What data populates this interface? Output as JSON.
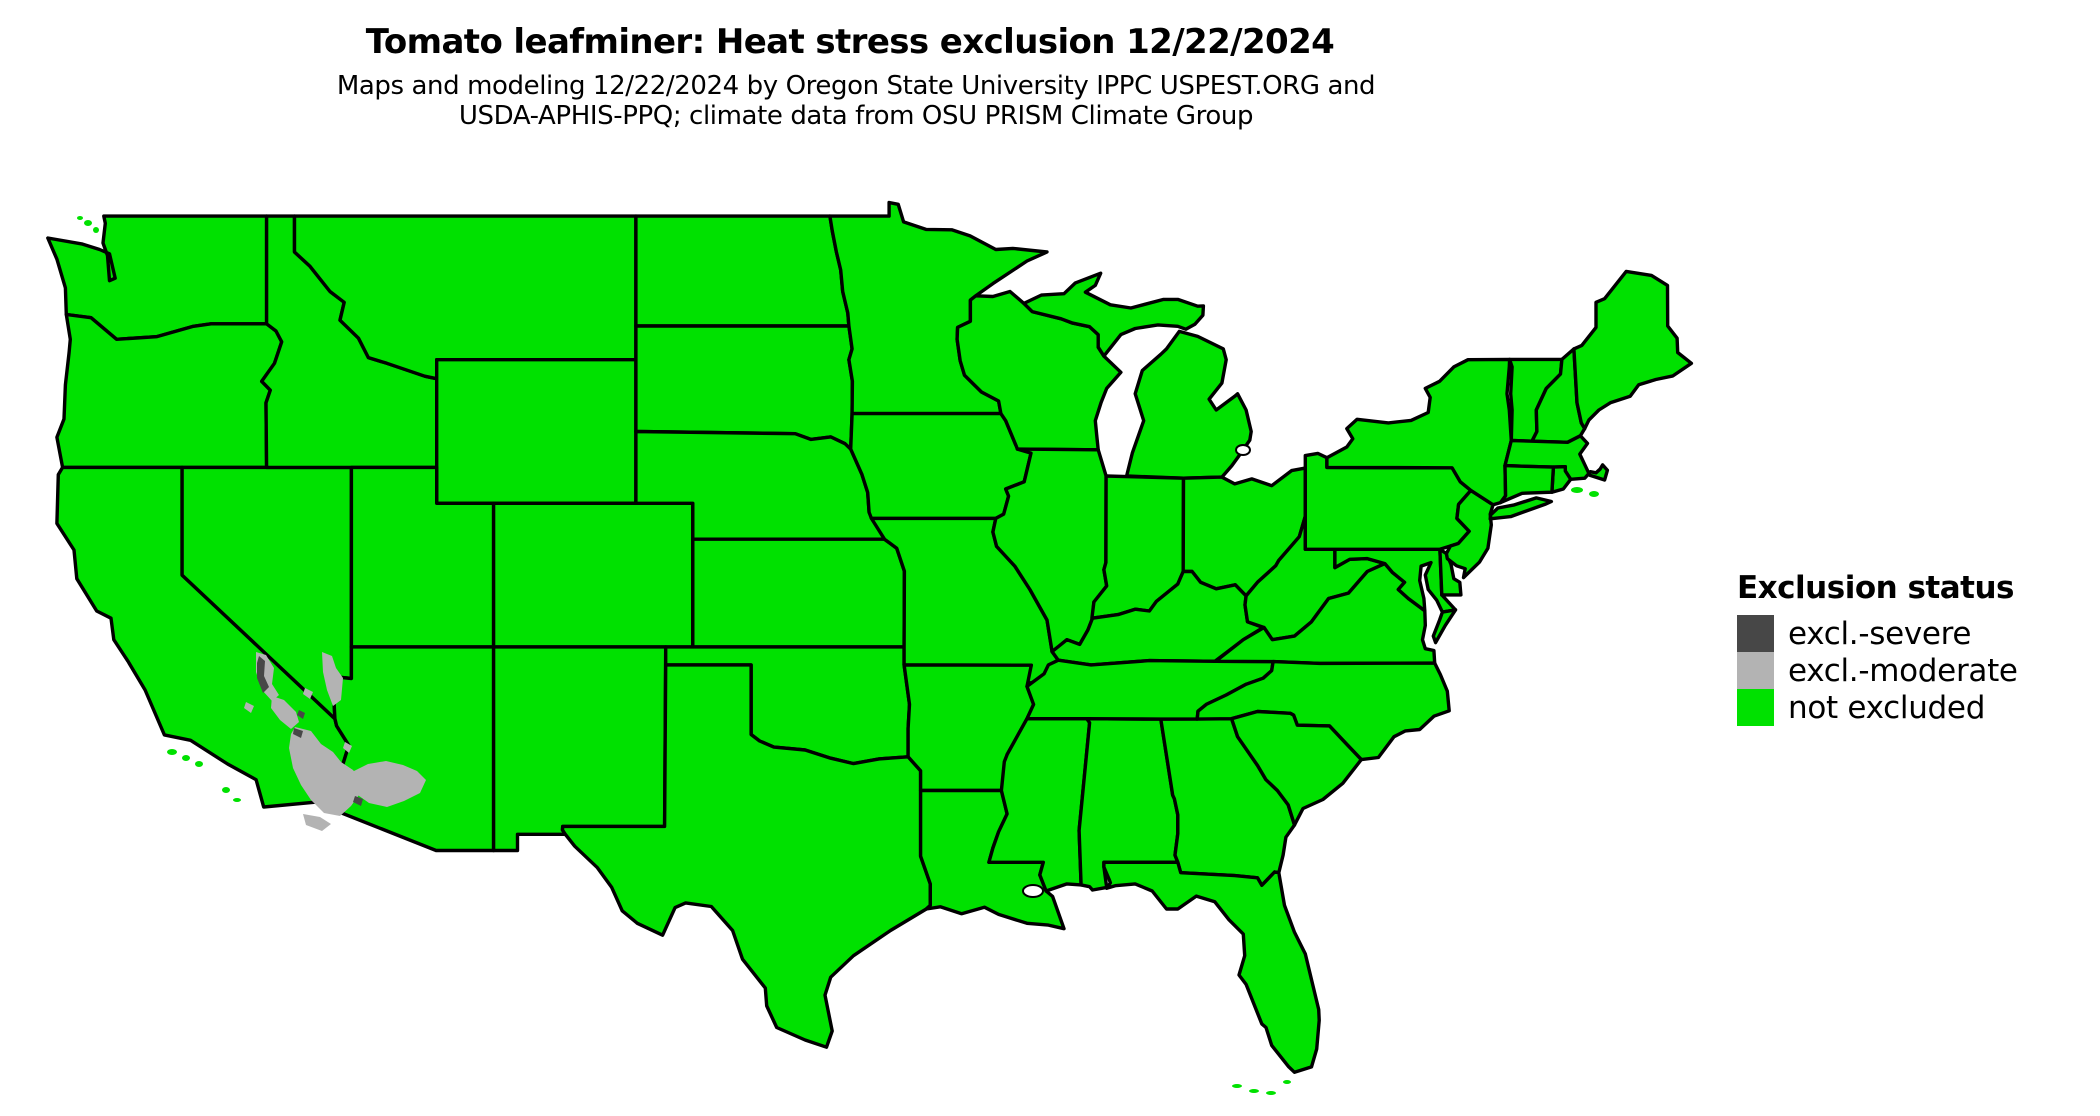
{
  "title": "Tomato leafminer: Heat stress exclusion 12/22/2024",
  "subtitle": [
    "Maps and modeling 12/22/2024 by Oregon State University IPPC USPEST.ORG and",
    "USDA-APHIS-PPQ; climate data from OSU PRISM Climate Group"
  ],
  "legend": {
    "title": "Exclusion status",
    "items": [
      {
        "label": "excl.-severe",
        "color": "#474747"
      },
      {
        "label": "excl.-moderate",
        "color": "#b3b3b3"
      },
      {
        "label": "not excluded",
        "color": "#00e100"
      }
    ]
  },
  "map": {
    "region_shown": "Continental United States with state borders",
    "border_color": "#000000",
    "water_background_color": "#ffffff",
    "status_summary": [
      {
        "region": "Nearly all of the continental United States",
        "status": "not excluded"
      },
      {
        "region": "Low desert of southeastern California and southwestern Arizona (lower Colorado River valley, Imperial Valley, Phoenix lowlands)",
        "status": "excl.-moderate"
      },
      {
        "region": "Small scattered pockets (Death Valley area and spots along the lower Colorado River)",
        "status": "excl.-severe"
      }
    ]
  }
}
